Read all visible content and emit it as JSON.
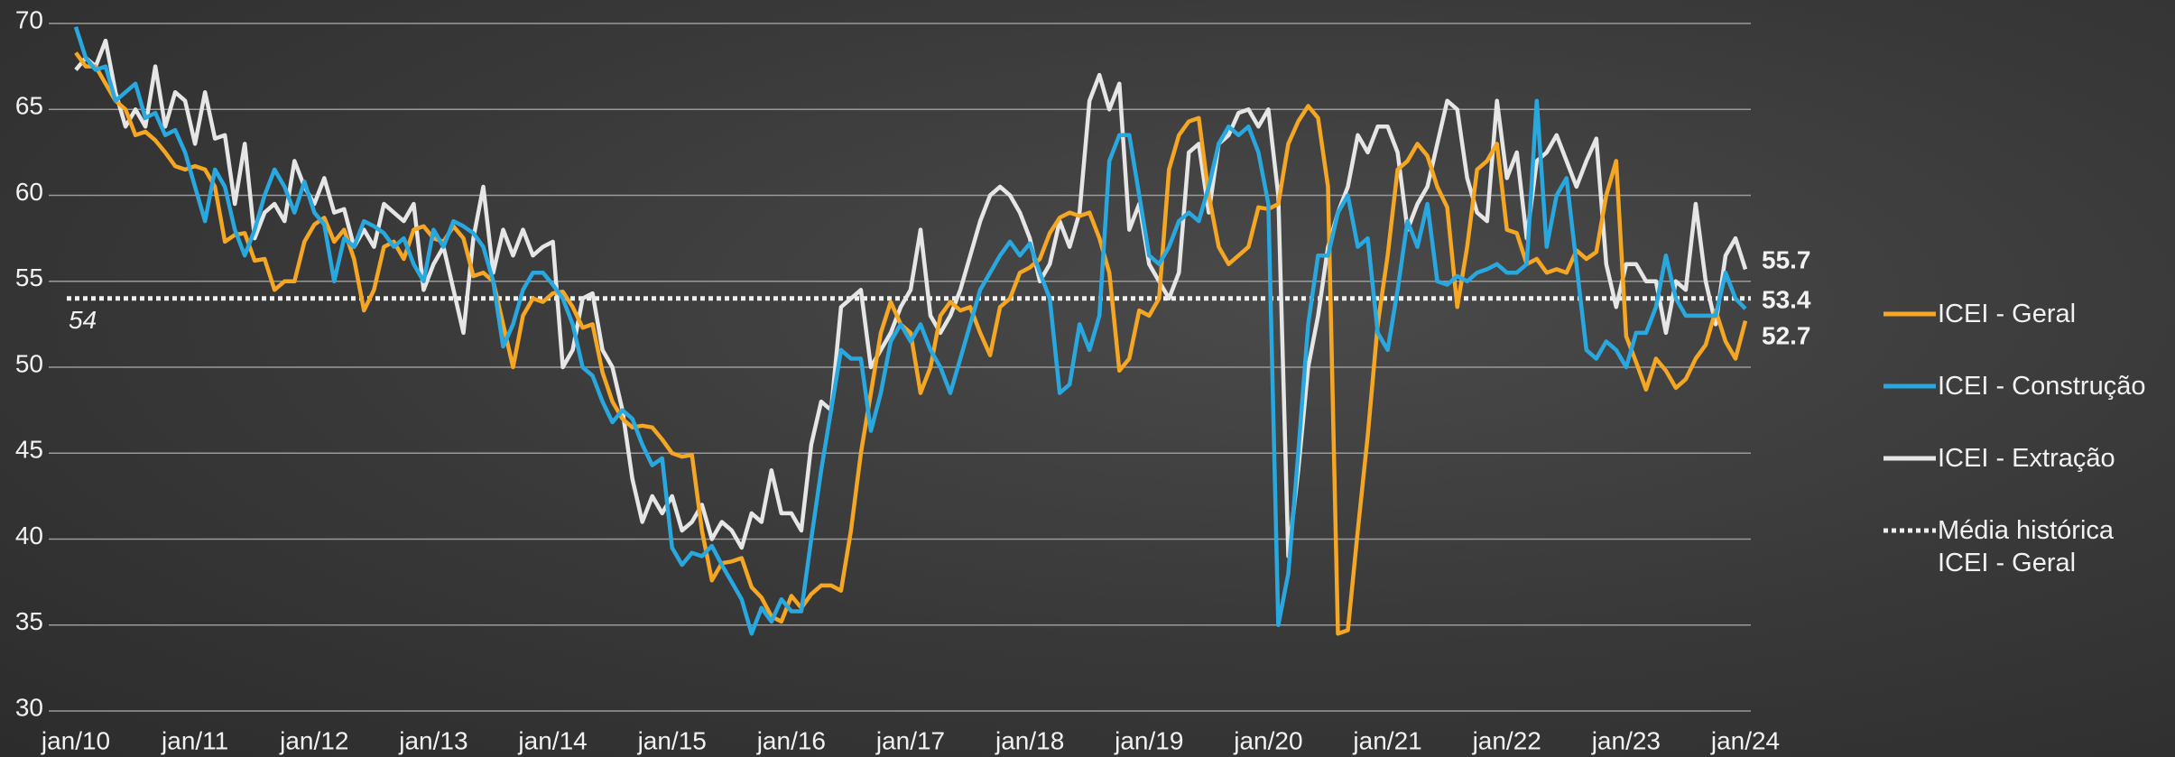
{
  "chart_data": {
    "type": "line",
    "categories": [
      "jan/10",
      null,
      null,
      null,
      null,
      null,
      null,
      null,
      null,
      null,
      null,
      null,
      "jan/11",
      null,
      null,
      null,
      null,
      null,
      null,
      null,
      null,
      null,
      null,
      null,
      "jan/12",
      null,
      null,
      null,
      null,
      null,
      null,
      null,
      null,
      null,
      null,
      null,
      "jan/13",
      null,
      null,
      null,
      null,
      null,
      null,
      null,
      null,
      null,
      null,
      null,
      "jan/14",
      null,
      null,
      null,
      null,
      null,
      null,
      null,
      null,
      null,
      null,
      null,
      "jan/15",
      null,
      null,
      null,
      null,
      null,
      null,
      null,
      null,
      null,
      null,
      null,
      "jan/16",
      null,
      null,
      null,
      null,
      null,
      null,
      null,
      null,
      null,
      null,
      null,
      "jan/17",
      null,
      null,
      null,
      null,
      null,
      null,
      null,
      null,
      null,
      null,
      null,
      "jan/18",
      null,
      null,
      null,
      null,
      null,
      null,
      null,
      null,
      null,
      null,
      null,
      "jan/19",
      null,
      null,
      null,
      null,
      null,
      null,
      null,
      null,
      null,
      null,
      null,
      "jan/20",
      null,
      null,
      null,
      null,
      null,
      null,
      null,
      null,
      null,
      null,
      null,
      "jan/21",
      null,
      null,
      null,
      null,
      null,
      null,
      null,
      null,
      null,
      null,
      null,
      "jan/22",
      null,
      null,
      null,
      null,
      null,
      null,
      null,
      null,
      null,
      null,
      null,
      "jan/23",
      null,
      null,
      null,
      null,
      null,
      null,
      null,
      null,
      null,
      null,
      null,
      "jan/24"
    ],
    "series": [
      {
        "name": "ICEI - Geral",
        "color": "#f5a623",
        "values": [
          68.3,
          67.5,
          67.5,
          66.5,
          65.5,
          65.0,
          63.5,
          63.7,
          63.2,
          62.5,
          61.7,
          61.5,
          61.7,
          61.5,
          60.5,
          57.3,
          57.7,
          57.8,
          56.2,
          56.3,
          54.5,
          55.0,
          55.0,
          57.3,
          58.3,
          58.7,
          57.3,
          58.0,
          56.3,
          53.3,
          54.5,
          57.0,
          57.3,
          56.3,
          58.0,
          58.2,
          57.5,
          57.3,
          58.2,
          57.5,
          55.3,
          55.5,
          55.0,
          52.5,
          50.0,
          53.0,
          54.0,
          53.8,
          54.3,
          54.4,
          53.5,
          52.3,
          52.5,
          49.7,
          48.0,
          47.0,
          46.5,
          46.6,
          46.5,
          45.8,
          45.0,
          44.8,
          44.9,
          40.5,
          37.6,
          38.6,
          38.7,
          38.9,
          37.2,
          36.6,
          35.5,
          35.2,
          36.7,
          36.0,
          36.8,
          37.3,
          37.3,
          37.0,
          40.5,
          45.0,
          48.5,
          52.0,
          53.8,
          52.5,
          52.0,
          48.5,
          50.0,
          53.0,
          53.8,
          53.3,
          53.5,
          52.0,
          50.7,
          53.5,
          54.0,
          55.5,
          55.8,
          56.3,
          57.8,
          58.7,
          59.0,
          58.8,
          59.0,
          57.5,
          55.5,
          49.8,
          50.5,
          53.3,
          53.0,
          54.0,
          61.5,
          63.5,
          64.3,
          64.5,
          60.0,
          57.0,
          56.0,
          56.5,
          57.0,
          59.3,
          59.2,
          59.5,
          63.0,
          64.3,
          65.2,
          64.5,
          60.5,
          34.5,
          34.7,
          40.5,
          46.0,
          52.5,
          56.5,
          61.5,
          62.0,
          63.0,
          62.3,
          60.5,
          59.3,
          53.5,
          57.0,
          61.5,
          62.0,
          63.0,
          58.0,
          57.8,
          56.0,
          56.3,
          55.5,
          55.7,
          55.5,
          56.8,
          56.3,
          56.7,
          60.0,
          62.0,
          51.8,
          50.3,
          48.7,
          50.5,
          49.8,
          48.8,
          49.3,
          50.5,
          51.3,
          53.3,
          51.5,
          50.5,
          52.7
        ]
      },
      {
        "name": "ICEI - Construção",
        "color": "#29a8e0",
        "values": [
          69.8,
          68.0,
          67.3,
          67.5,
          65.5,
          66.0,
          66.5,
          64.5,
          64.8,
          63.5,
          63.8,
          62.5,
          60.5,
          58.5,
          61.5,
          60.5,
          58.0,
          56.5,
          58.0,
          60.0,
          61.5,
          60.5,
          59.0,
          60.8,
          59.0,
          58.3,
          55.0,
          57.5,
          57.0,
          58.5,
          58.2,
          57.8,
          57.0,
          57.5,
          56.0,
          55.0,
          58.0,
          57.0,
          58.5,
          58.2,
          57.8,
          57.0,
          55.0,
          51.2,
          52.5,
          54.5,
          55.5,
          55.5,
          54.8,
          54.0,
          52.5,
          50.0,
          49.5,
          48.0,
          46.8,
          47.5,
          47.0,
          45.5,
          44.3,
          44.7,
          39.5,
          38.5,
          39.2,
          39.0,
          39.6,
          38.5,
          37.5,
          36.5,
          34.5,
          36.0,
          35.2,
          36.5,
          35.8,
          35.8,
          40.0,
          44.0,
          47.5,
          51.0,
          50.5,
          50.5,
          46.3,
          48.5,
          51.5,
          52.5,
          51.5,
          52.5,
          51.0,
          50.0,
          48.5,
          50.5,
          52.5,
          54.5,
          55.5,
          56.5,
          57.3,
          56.5,
          57.2,
          55.5,
          54.0,
          48.5,
          49.0,
          52.5,
          51.0,
          53.0,
          62.0,
          63.5,
          63.5,
          60.0,
          56.5,
          56.0,
          57.0,
          58.5,
          59.0,
          58.5,
          60.5,
          63.0,
          64.0,
          63.5,
          64.0,
          62.5,
          59.5,
          35.0,
          38.0,
          45.0,
          52.5,
          56.5,
          56.5,
          59.0,
          60.0,
          57.0,
          57.5,
          52.0,
          51.0,
          54.5,
          58.5,
          57.0,
          59.5,
          55.0,
          54.8,
          55.3,
          55.0,
          55.5,
          55.7,
          56.0,
          55.5,
          55.5,
          56.0,
          65.5,
          57.0,
          60.0,
          61.0,
          56.0,
          51.0,
          50.5,
          51.5,
          51.0,
          50.0,
          52.0,
          52.0,
          53.5,
          56.5,
          54.0,
          53.0,
          53.0,
          53.0,
          53.0,
          55.5,
          54.0,
          53.4
        ]
      },
      {
        "name": "ICEI - Extração",
        "color": "#e6e6e6",
        "values": [
          67.3,
          68.0,
          67.5,
          69.0,
          66.0,
          64.0,
          65.0,
          64.0,
          67.5,
          64.0,
          66.0,
          65.5,
          63.0,
          66.0,
          63.3,
          63.5,
          59.5,
          63.0,
          57.5,
          59.0,
          59.5,
          58.5,
          62.0,
          60.5,
          59.5,
          61.0,
          59.0,
          59.2,
          57.0,
          58.0,
          57.0,
          59.5,
          59.0,
          58.5,
          59.5,
          54.5,
          56.0,
          57.0,
          54.5,
          52.0,
          57.5,
          60.5,
          55.5,
          58.0,
          56.5,
          58.0,
          56.5,
          57.0,
          57.3,
          50.0,
          51.0,
          54.0,
          54.3,
          51.0,
          50.0,
          47.5,
          43.5,
          41.0,
          42.5,
          41.5,
          42.5,
          40.5,
          41.0,
          42.0,
          40.0,
          41.0,
          40.5,
          39.5,
          41.5,
          41.0,
          44.0,
          41.5,
          41.5,
          40.5,
          45.5,
          48.0,
          47.5,
          53.5,
          54.0,
          54.5,
          50.0,
          51.0,
          52.0,
          53.5,
          54.5,
          58.0,
          53.0,
          52.0,
          53.0,
          54.5,
          56.5,
          58.5,
          60.0,
          60.5,
          60.0,
          59.0,
          57.5,
          55.0,
          56.0,
          58.5,
          57.0,
          59.0,
          65.5,
          67.0,
          65.0,
          66.5,
          58.0,
          59.5,
          56.0,
          55.0,
          54.0,
          55.5,
          62.5,
          63.0,
          59.0,
          63.0,
          63.5,
          64.8,
          65.0,
          64.0,
          65.0,
          60.0,
          39.0,
          44.0,
          50.0,
          53.0,
          57.0,
          59.0,
          60.5,
          63.5,
          62.5,
          64.0,
          64.0,
          62.5,
          58.0,
          59.5,
          60.5,
          63.0,
          65.5,
          65.0,
          61.0,
          59.0,
          58.5,
          65.5,
          61.0,
          62.5,
          57.5,
          62.0,
          62.5,
          63.5,
          62.0,
          60.5,
          62.0,
          63.3,
          56.0,
          53.5,
          56.0,
          56.0,
          55.0,
          55.0,
          52.0,
          55.0,
          54.5,
          59.5,
          55.0,
          52.5,
          56.5,
          57.5,
          55.7
        ]
      }
    ],
    "reference": {
      "name": "Média histórica ICEI - Geral",
      "value": 54,
      "color": "#f0f0f0"
    },
    "ylim": [
      30,
      70
    ],
    "yticks": [
      30,
      35,
      40,
      45,
      50,
      55,
      60,
      65,
      70
    ],
    "grid": true
  }
}
